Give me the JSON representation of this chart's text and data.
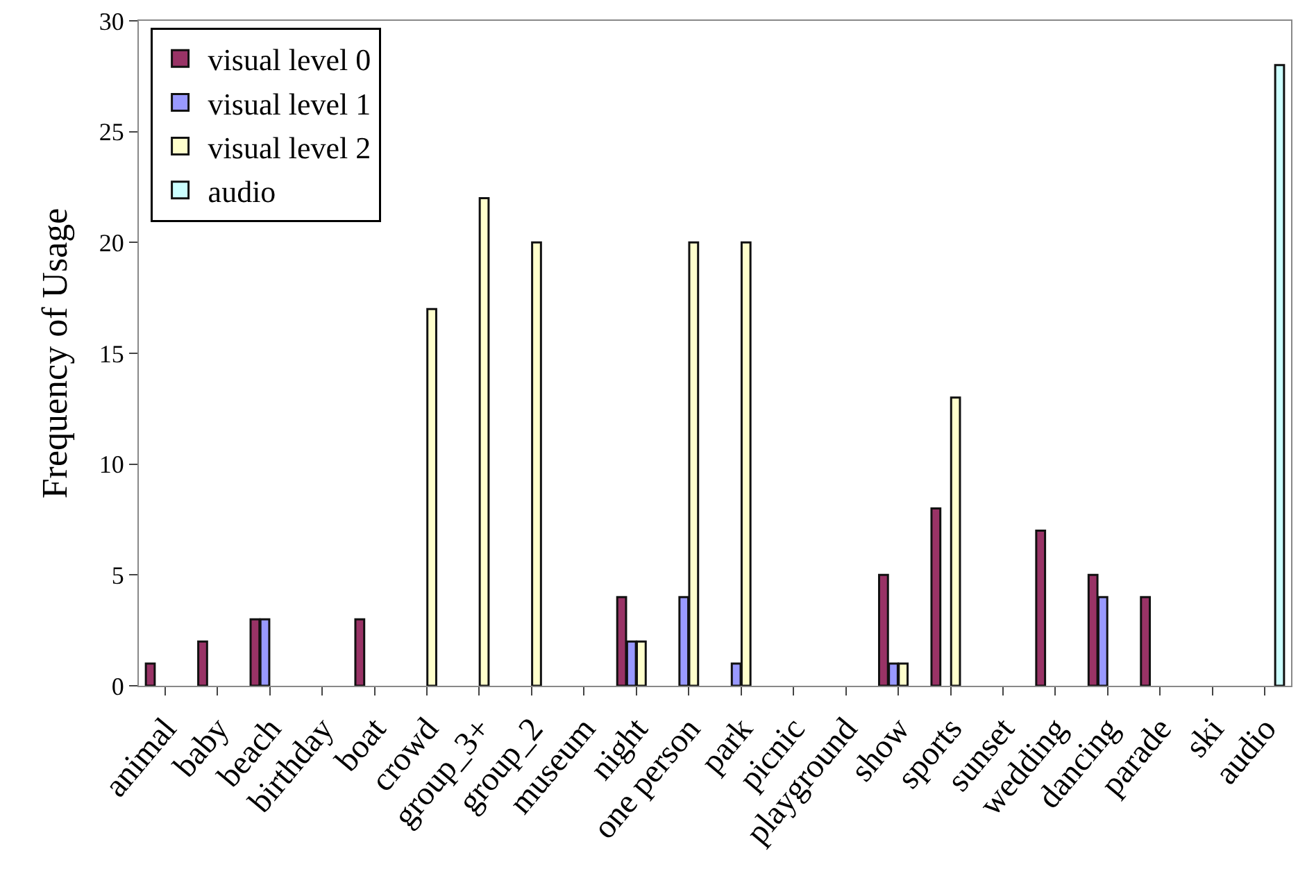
{
  "chart_data": {
    "type": "bar",
    "ylabel": "Frequency of Usage",
    "categories": [
      "animal",
      "baby",
      "beach",
      "birthday",
      "boat",
      "crowd",
      "group_3+",
      "group_2",
      "museum",
      "night",
      "one person",
      "park",
      "picnic",
      "playground",
      "show",
      "sports",
      "sunset",
      "wedding",
      "dancing",
      "parade",
      "ski",
      "audio"
    ],
    "series": [
      {
        "name": "visual level 0",
        "color": "#993366",
        "values": [
          1,
          2,
          3,
          null,
          3,
          null,
          null,
          null,
          null,
          4,
          null,
          null,
          null,
          null,
          5,
          8,
          null,
          7,
          5,
          4,
          null,
          null
        ]
      },
      {
        "name": "visual level 1",
        "color": "#9999ff",
        "values": [
          null,
          null,
          3,
          null,
          null,
          null,
          null,
          null,
          null,
          2,
          4,
          1,
          null,
          null,
          1,
          null,
          null,
          null,
          4,
          null,
          null,
          null
        ]
      },
      {
        "name": "visual level 2",
        "color": "#ffffcc",
        "values": [
          null,
          null,
          null,
          null,
          null,
          17,
          22,
          20,
          null,
          2,
          20,
          20,
          null,
          null,
          1,
          13,
          null,
          null,
          null,
          null,
          null,
          null
        ]
      },
      {
        "name": "audio",
        "color": "#ccffff",
        "values": [
          null,
          null,
          null,
          null,
          null,
          null,
          null,
          null,
          null,
          null,
          null,
          null,
          null,
          null,
          null,
          null,
          null,
          null,
          null,
          null,
          null,
          28
        ]
      }
    ],
    "ylim": [
      0,
      30
    ],
    "yticks": [
      0,
      5,
      10,
      15,
      20,
      25,
      30
    ],
    "legend": "top left"
  }
}
